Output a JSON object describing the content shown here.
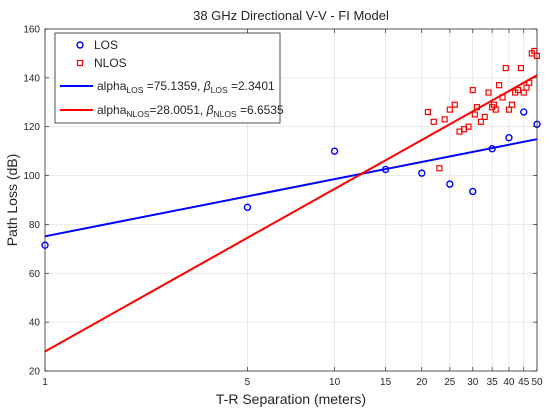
{
  "chart_data": {
    "type": "scatter",
    "title": "38 GHz Directional V-V - FI Model",
    "xlabel": "T-R Separation (meters)",
    "ylabel": "Path Loss (dB)",
    "xscale": "log",
    "xlim": [
      1,
      50
    ],
    "ylim": [
      20,
      160
    ],
    "x_ticks": [
      1,
      5,
      10,
      15,
      20,
      25,
      30,
      35,
      40,
      45,
      50
    ],
    "y_ticks": [
      20,
      40,
      60,
      80,
      100,
      120,
      140,
      160
    ],
    "grid": true,
    "legend_position": "top-left",
    "series": [
      {
        "name": "LOS",
        "kind": "points",
        "marker": "circle",
        "color": "#0000ff",
        "x": [
          1,
          5,
          10,
          15,
          20,
          25,
          30,
          35,
          40,
          45,
          50
        ],
        "y": [
          71.5,
          87,
          110,
          102.5,
          101,
          96.5,
          93.5,
          111,
          115.5,
          126,
          121
        ]
      },
      {
        "name": "NLOS",
        "kind": "points",
        "marker": "square",
        "color": "#ff0000",
        "x": [
          21,
          22,
          23,
          24,
          25,
          26,
          27,
          28,
          29,
          30,
          30.5,
          31,
          32,
          33,
          34,
          35,
          35.5,
          36,
          37,
          38,
          39,
          40,
          41,
          42,
          43,
          44,
          45,
          46,
          47,
          48,
          49,
          50
        ],
        "y": [
          126,
          122,
          103,
          123,
          127,
          129,
          118,
          119,
          120,
          135,
          125,
          128,
          122,
          124,
          134,
          128,
          129,
          127,
          137,
          132,
          144,
          127,
          129,
          134,
          135,
          144,
          134,
          136,
          138,
          150,
          151,
          149
        ]
      },
      {
        "kind": "line",
        "color": "#0000ff",
        "alpha": 75.1359,
        "beta": 2.3401
      },
      {
        "kind": "line",
        "color": "#ff0000",
        "alpha": 28.0051,
        "beta": 6.6535
      }
    ],
    "legend": [
      {
        "type": "marker",
        "marker": "circle",
        "color": "#0000ff",
        "text": "LOS"
      },
      {
        "type": "marker",
        "marker": "square",
        "color": "#ff0000",
        "text": "NLOS"
      },
      {
        "type": "line",
        "color": "#0000ff",
        "text": {
          "p1": "alpha",
          "s1": "LOS",
          "p2": " =75.1359, ",
          "beta": "β",
          "s2": "LOS",
          "p3": " =2.3401"
        }
      },
      {
        "type": "line",
        "color": "#ff0000",
        "text": {
          "p1": "alpha",
          "s1": "NLOS",
          "p2": "=28.0051, ",
          "beta": "β",
          "s2": "NLOS",
          "p3": " =6.6535"
        }
      }
    ]
  }
}
